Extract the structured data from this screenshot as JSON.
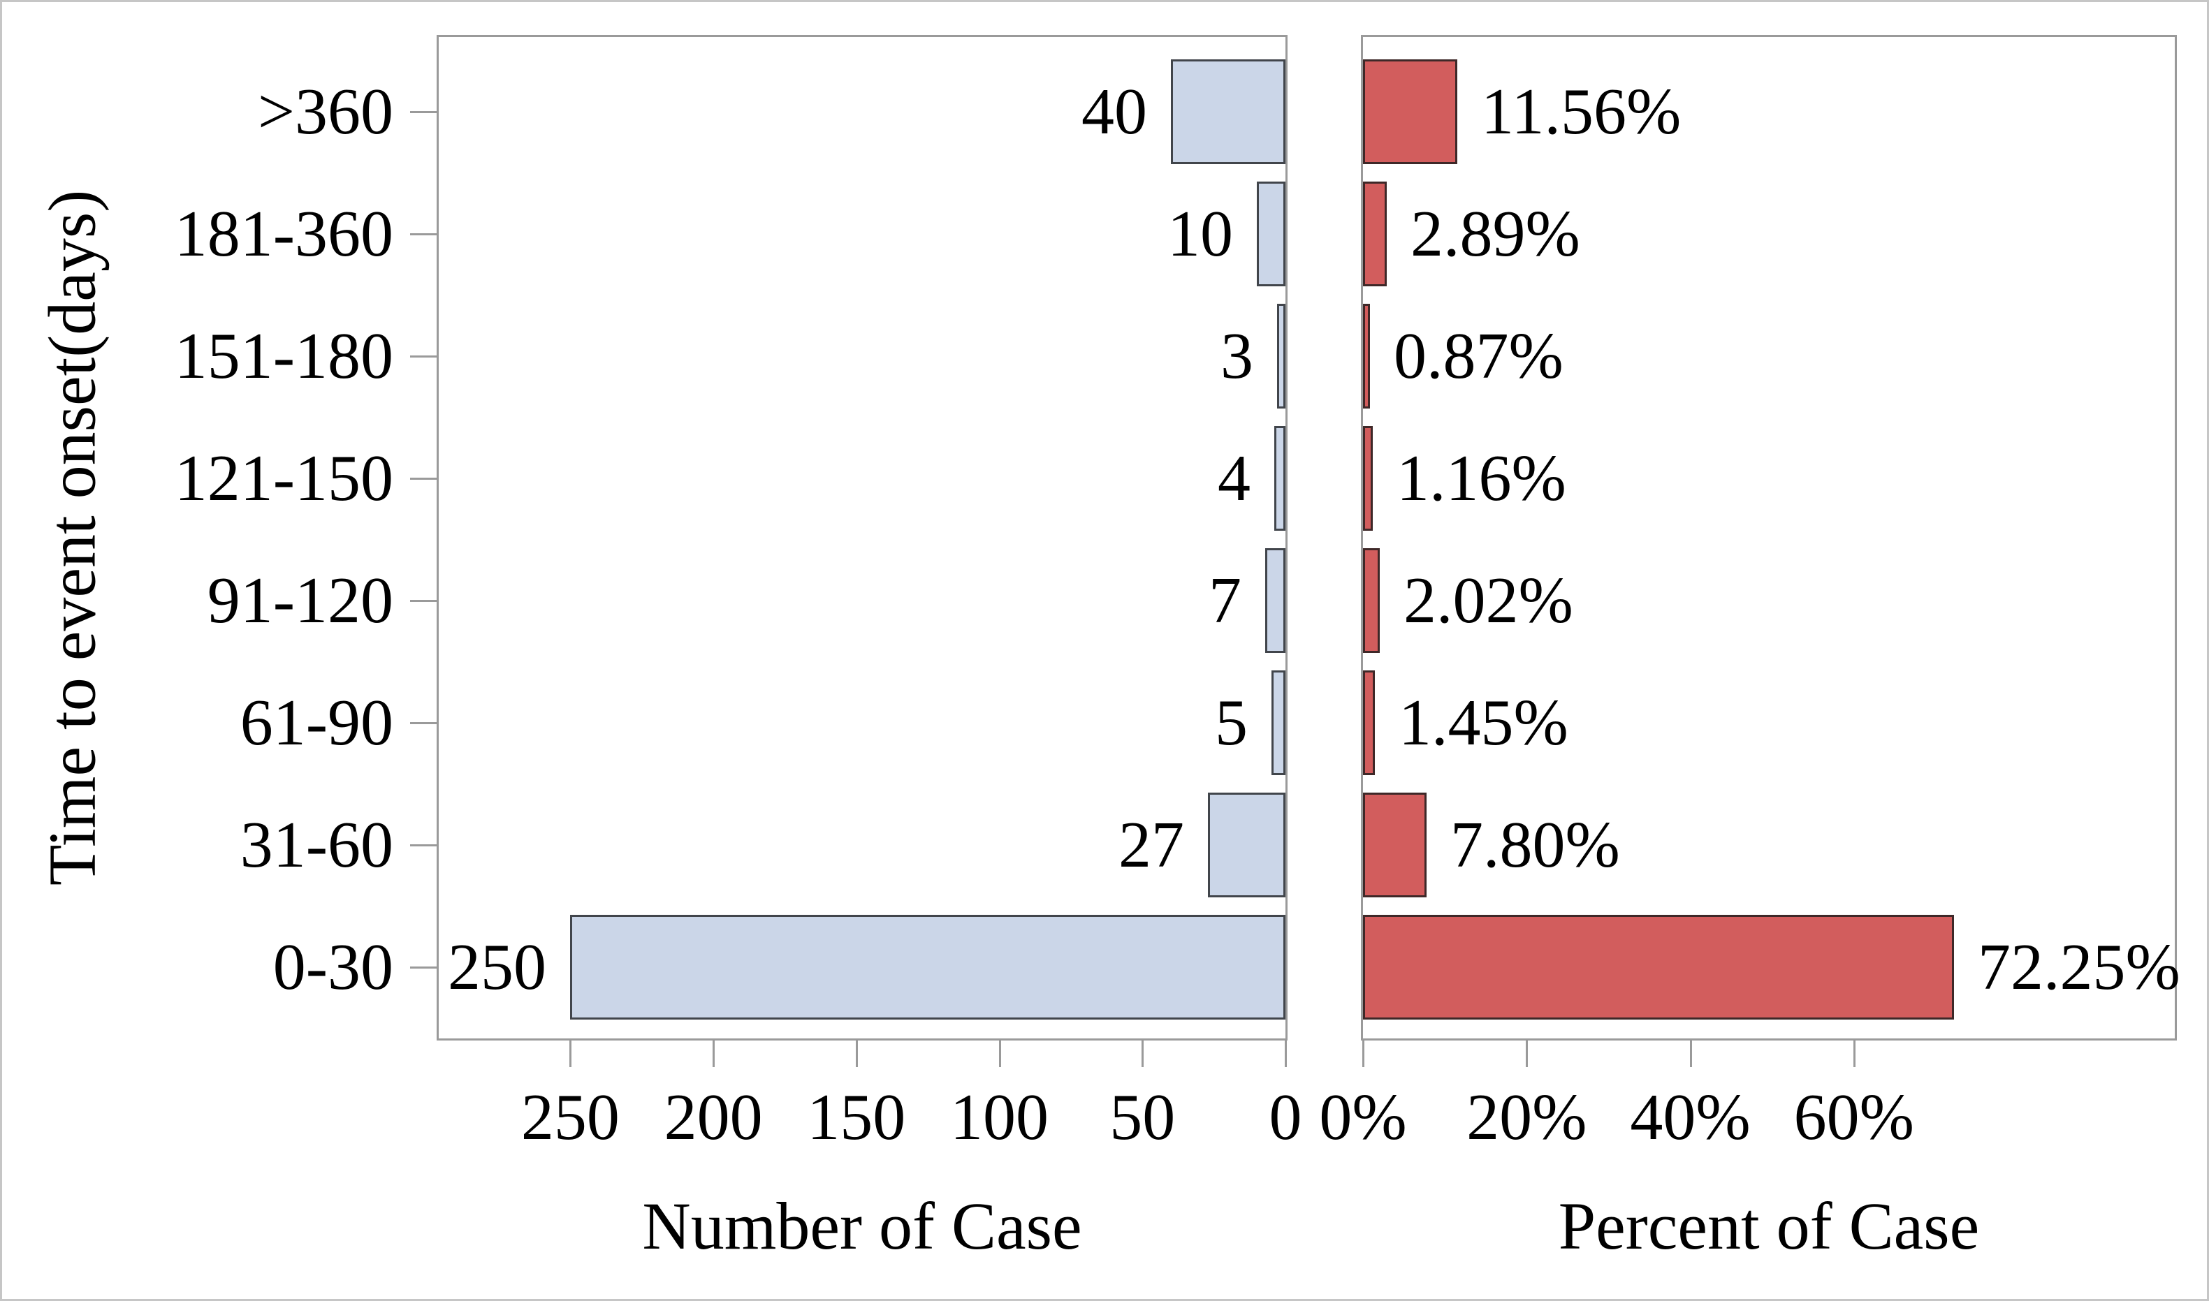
{
  "y_axis_label": "Time to event onset(days)",
  "x_axis_titles": {
    "left": "Number of Case",
    "right": "Percent of Case"
  },
  "colors": {
    "count_bar_fill": "#cbd6e8",
    "count_bar_border": "#41454b",
    "percent_bar_fill": "#d25d5d",
    "percent_bar_border": "#3e2828",
    "panel_border": "#9a9a9a",
    "tick": "#9a9a9a",
    "text": "#000000"
  },
  "chart_data": {
    "type": "bar",
    "subtype": "diverging-horizontal",
    "title": "",
    "ylabel": "Time to event onset(days)",
    "grid": false,
    "legend": "none",
    "categories": [
      ">360",
      "181-360",
      "151-180",
      "121-150",
      "91-120",
      "61-90",
      "31-60",
      "0-30"
    ],
    "series": [
      {
        "name": "Number of Case",
        "side": "left",
        "values": [
          40,
          10,
          3,
          4,
          7,
          5,
          27,
          250
        ],
        "labels": [
          "40",
          "10",
          "3",
          "4",
          "7",
          "5",
          "27",
          "250"
        ]
      },
      {
        "name": "Percent of Case",
        "side": "right",
        "values": [
          11.56,
          2.89,
          0.87,
          1.16,
          2.02,
          1.45,
          7.8,
          72.25
        ],
        "labels": [
          "11.56%",
          "2.89%",
          "0.87%",
          "1.16%",
          "2.02%",
          "1.45%",
          "7.80%",
          "72.25%"
        ]
      }
    ],
    "left_axis": {
      "tick_labels": [
        "250",
        "200",
        "150",
        "100",
        "50",
        "0"
      ],
      "tick_values": [
        250,
        200,
        150,
        100,
        50,
        0
      ],
      "range": [
        0,
        296
      ],
      "direction": "reversed"
    },
    "right_axis": {
      "tick_labels": [
        "0%",
        "20%",
        "40%",
        "60%"
      ],
      "tick_values": [
        0,
        20,
        40,
        60
      ],
      "range": [
        0,
        99.2
      ]
    }
  }
}
